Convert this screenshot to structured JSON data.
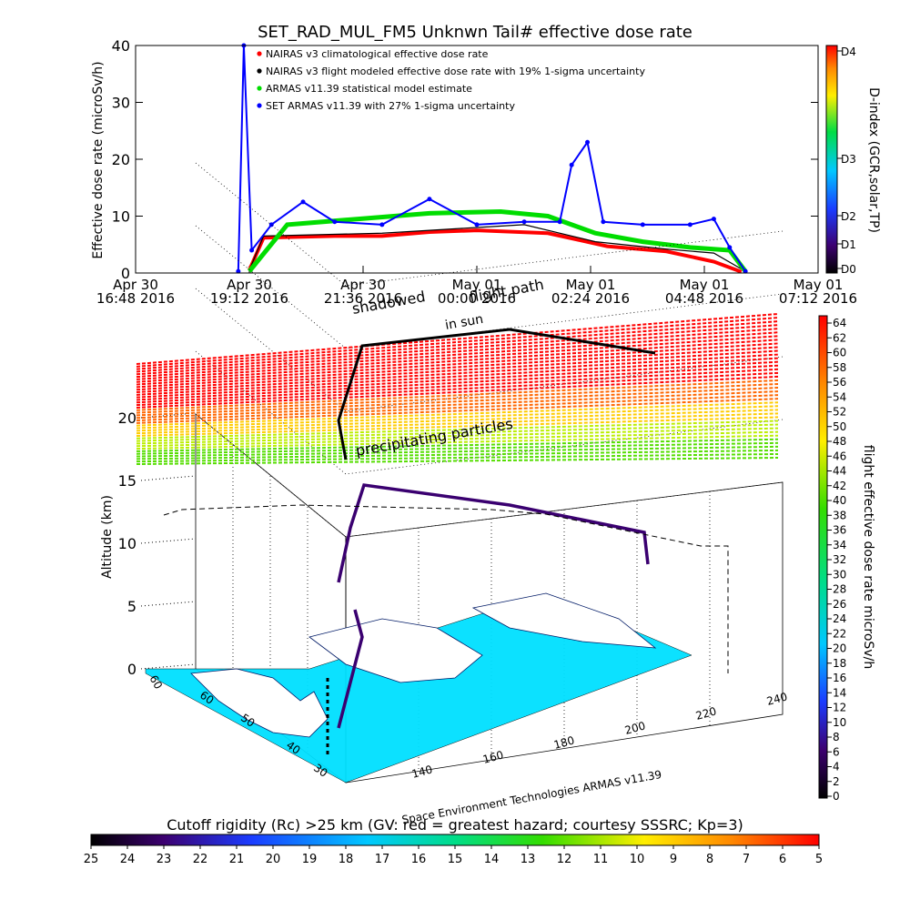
{
  "top_chart": {
    "title": "SET_RAD_MUL_FM5 Unknwn Tail#  effective dose rate",
    "ylabel": "Effective dose rate (microSv/h)",
    "y_ticks": [
      "0",
      "10",
      "20",
      "30",
      "40"
    ],
    "x_ticks": [
      {
        "line1": "Apr 30",
        "line2": "16:48 2016"
      },
      {
        "line1": "Apr 30",
        "line2": "19:12 2016"
      },
      {
        "line1": "Apr 30",
        "line2": "21:36 2016"
      },
      {
        "line1": "May 01",
        "line2": "00:00 2016"
      },
      {
        "line1": "May 01",
        "line2": "02:24 2016"
      },
      {
        "line1": "May 01",
        "line2": "04:48 2016"
      },
      {
        "line1": "May 01",
        "line2": "07:12 2016"
      }
    ],
    "legend": [
      "NAIRAS v3 climatological effective dose rate",
      "NAIRAS v3 flight modeled effective dose rate with 19% 1-sigma uncertainty",
      "ARMAS v11.39 statistical model estimate",
      "SET ARMAS v11.39 with 27% 1-sigma uncertainty"
    ],
    "dindex": {
      "label": "D-index (GCR,solar,TP)",
      "ticks": [
        "D0",
        "D1",
        "D2",
        "D3",
        "D4"
      ]
    },
    "overlay_text": [
      "shadowed",
      "flight path",
      "in sun"
    ]
  },
  "three_d": {
    "zlabel": "Altitude (km)",
    "z_ticks": [
      "0",
      "5",
      "10",
      "15",
      "20"
    ],
    "lat_ticks": [
      "30",
      "40",
      "50",
      "60"
    ],
    "lat_top_label": "60",
    "lon_ticks": [
      "140",
      "160",
      "180",
      "200",
      "220",
      "240"
    ],
    "annotation": "precipitating particles",
    "credit": "Space Environment Technologies ARMAS v11.39"
  },
  "right_colorbar": {
    "label": "flight effective dose rate microSv/h",
    "ticks": [
      "0",
      "2",
      "4",
      "6",
      "8",
      "10",
      "12",
      "14",
      "16",
      "18",
      "20",
      "22",
      "24",
      "26",
      "28",
      "30",
      "32",
      "34",
      "36",
      "38",
      "40",
      "42",
      "44",
      "46",
      "48",
      "50",
      "52",
      "54",
      "56",
      "58",
      "60",
      "62",
      "64"
    ]
  },
  "bottom_colorbar": {
    "title": "Cutoff rigidity (Rc) >25 km (GV: red = greatest hazard; courtesy SSSRC; Kp=3)",
    "ticks": [
      "25",
      "24",
      "23",
      "22",
      "21",
      "20",
      "19",
      "18",
      "17",
      "16",
      "15",
      "14",
      "13",
      "12",
      "11",
      "10",
      "9",
      "8",
      "7",
      "6",
      "5"
    ]
  },
  "chart_data": [
    {
      "type": "line",
      "title": "SET_RAD_MUL_FM5 Unknwn Tail#  effective dose rate",
      "ylabel": "Effective dose rate (microSv/h)",
      "xlabel": "",
      "x_range": [
        "2016-04-30 16:48",
        "2016-05-01 07:12"
      ],
      "ylim": [
        0,
        40
      ],
      "legend_position": "top-left",
      "series": [
        {
          "name": "NAIRAS v3 climatological effective dose rate",
          "color": "#ff0000",
          "x": [
            "2016-04-30 19:12",
            "2016-04-30 19:30",
            "2016-04-30 21:00",
            "2016-04-30 22:00",
            "2016-04-30 23:00",
            "2016-05-01 00:00",
            "2016-05-01 01:30",
            "2016-05-01 02:45",
            "2016-05-01 04:00",
            "2016-05-01 05:00",
            "2016-05-01 05:35"
          ],
          "y": [
            0.5,
            6.2,
            6.5,
            6.5,
            7.2,
            7.5,
            7.0,
            4.7,
            3.8,
            2.0,
            0.2
          ]
        },
        {
          "name": "NAIRAS v3 flight modeled effective dose rate with 19% 1-sigma uncertainty",
          "color": "#000000",
          "x": [
            "2016-04-30 19:12",
            "2016-04-30 19:30",
            "2016-04-30 22:00",
            "2016-05-01 00:00",
            "2016-05-01 01:00",
            "2016-05-01 02:30",
            "2016-05-01 04:00",
            "2016-05-01 05:00",
            "2016-05-01 05:40"
          ],
          "y": [
            0.5,
            6.5,
            7.0,
            8.0,
            8.5,
            5.5,
            4.2,
            3.5,
            0.3
          ]
        },
        {
          "name": "ARMAS v11.39 statistical model estimate",
          "color": "#00dd00",
          "x": [
            "2016-04-30 19:12",
            "2016-04-30 20:00",
            "2016-04-30 21:30",
            "2016-04-30 23:00",
            "2016-05-01 00:30",
            "2016-05-01 01:30",
            "2016-05-01 02:30",
            "2016-05-01 03:30",
            "2016-05-01 04:30",
            "2016-05-01 05:20",
            "2016-05-01 05:40"
          ],
          "y": [
            0.3,
            8.5,
            9.5,
            10.5,
            10.8,
            10.0,
            7.0,
            5.5,
            4.5,
            4.0,
            0.3
          ]
        },
        {
          "name": "SET ARMAS v11.39 with 27% 1-sigma uncertainty",
          "color": "#0000ff",
          "x": [
            "2016-04-30 18:58",
            "2016-04-30 19:05",
            "2016-04-30 19:15",
            "2016-04-30 19:40",
            "2016-04-30 20:20",
            "2016-04-30 21:00",
            "2016-04-30 22:00",
            "2016-04-30 23:00",
            "2016-05-01 00:00",
            "2016-05-01 01:00",
            "2016-05-01 01:45",
            "2016-05-01 02:00",
            "2016-05-01 02:20",
            "2016-05-01 02:40",
            "2016-05-01 03:30",
            "2016-05-01 04:30",
            "2016-05-01 05:00",
            "2016-05-01 05:20",
            "2016-05-01 05:40"
          ],
          "y": [
            0.3,
            40.0,
            4.0,
            8.5,
            12.5,
            9.0,
            8.5,
            13.0,
            8.5,
            9.0,
            9.0,
            19.0,
            23.0,
            9.0,
            8.5,
            8.5,
            9.5,
            4.5,
            0.3
          ]
        }
      ]
    },
    {
      "type": "scatter",
      "title": "",
      "description_axes": {
        "x": "longitude",
        "y": "latitude",
        "z": "Altitude (km)"
      },
      "zlim": [
        0,
        20
      ],
      "lat_range": [
        30,
        60
      ],
      "lon_range": [
        140,
        240
      ],
      "series": [
        {
          "name": "flight path",
          "lon": [
            150,
            152,
            153,
            155,
            165,
            190,
            220
          ],
          "lat": [
            33,
            36,
            40,
            45,
            55,
            60,
            58
          ],
          "altitude_km": [
            0,
            5,
            9,
            12,
            12.5,
            12,
            11
          ]
        }
      ]
    }
  ]
}
